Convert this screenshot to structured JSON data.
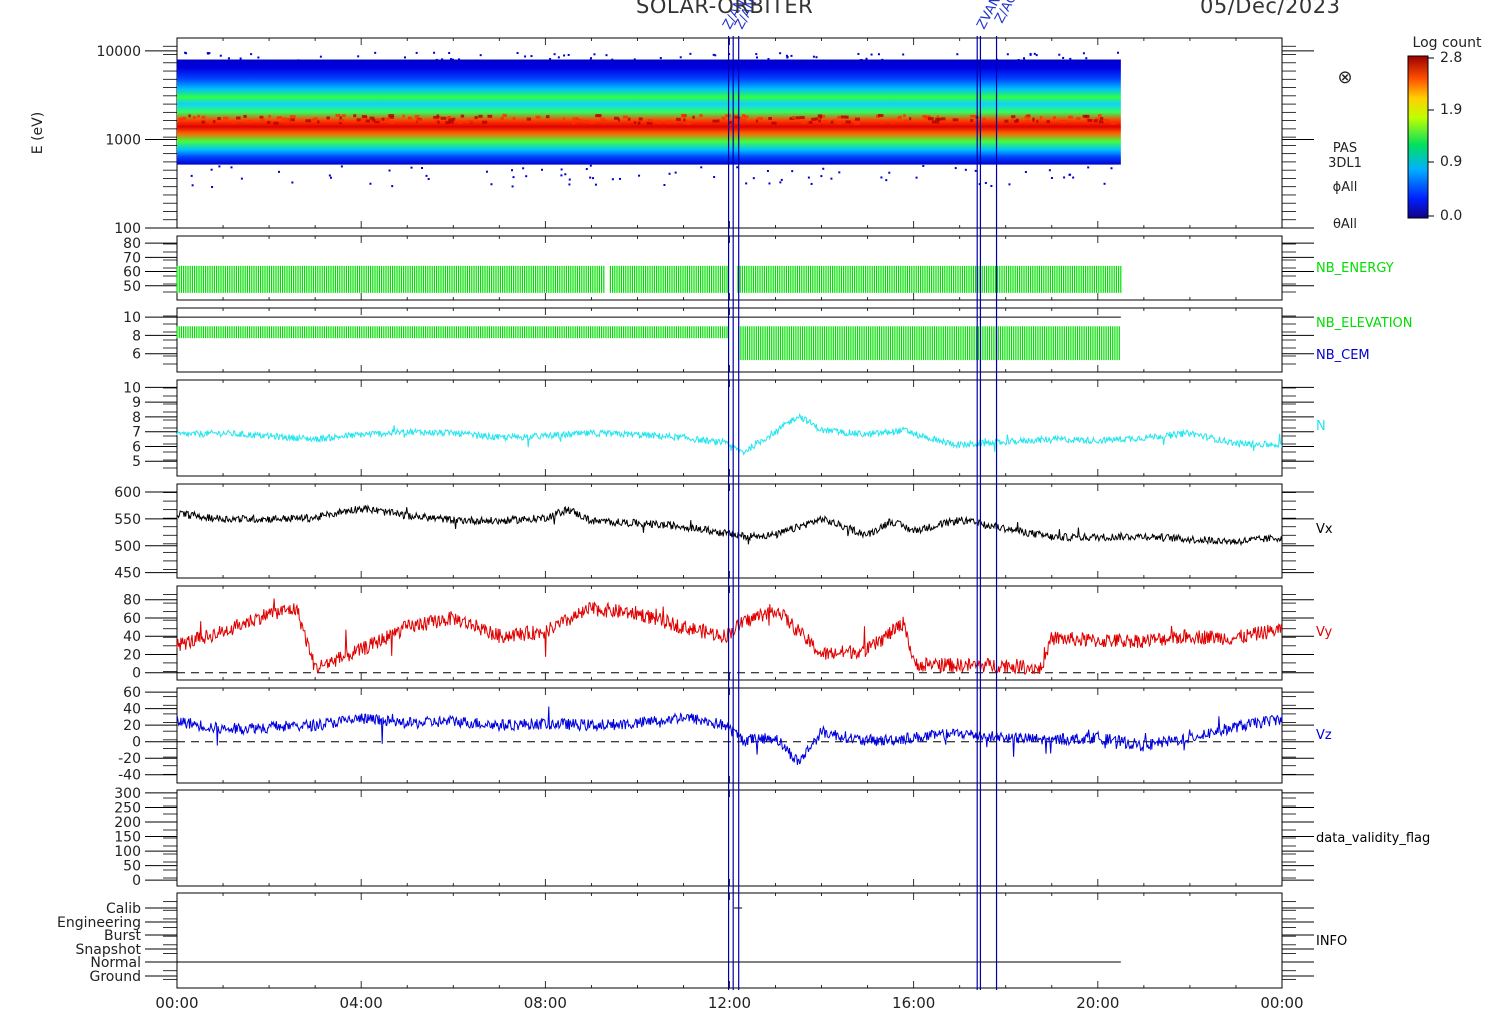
{
  "header": {
    "mission": "SOLAR-ORBITER",
    "date": "05/Dec/2023"
  },
  "colorbar": {
    "title": "Log count",
    "ticks": [
      "2.8",
      "1.9",
      "0.9",
      "0.0"
    ]
  },
  "time_axis": {
    "ticks": [
      "00:00",
      "04:00",
      "08:00",
      "12:00",
      "16:00",
      "20:00",
      "00:00"
    ],
    "range_hours": [
      0,
      24
    ]
  },
  "markers": {
    "hours": [
      11.98,
      12.08,
      12.2,
      17.38,
      17.45,
      17.8
    ],
    "labels": [
      "Z/AN",
      "Z/AN",
      "ZVAN",
      "Z/AO"
    ]
  },
  "chart_data": [
    {
      "type": "heatmap",
      "ylabel": "E (eV)",
      "y_scale": "log",
      "ylim": [
        100,
        14000
      ],
      "y_ticks": [
        "10000",
        "1000",
        "100"
      ],
      "right_labels": [
        "PAS",
        "3DL1",
        "ϕAll",
        "θAll"
      ],
      "data_extent_hours": [
        0,
        20.5
      ],
      "peak_energy_eV": 1500,
      "colormap": "rainbow (blue to red)",
      "extra_symbol": "⊗"
    },
    {
      "type": "bar",
      "label": "NB_ENERGY",
      "label_color": "#00dd00",
      "y_ticks": [
        "80",
        "70",
        "60",
        "50"
      ],
      "ylim": [
        40,
        85
      ],
      "level": 64,
      "base": 45,
      "data_extent_hours": [
        0,
        20.5
      ],
      "gaps_hours": [
        9.35,
        11.95,
        12.15
      ]
    },
    {
      "type": "bar",
      "labels": [
        "NB_ELEVATION",
        "NB_CEM"
      ],
      "label_colors": [
        "#00dd00",
        "#0000cc"
      ],
      "y_ticks": [
        "10",
        "8",
        "6"
      ],
      "ylim": [
        4,
        11
      ],
      "segments": [
        {
          "from": 0,
          "to": 11.95,
          "low": 7.7,
          "high": 9.0
        },
        {
          "from": 12.2,
          "to": 20.5,
          "low": 5.3,
          "high": 9.0
        }
      ],
      "top_line_value": 10.0
    },
    {
      "type": "line",
      "label": "N",
      "color": "#22e5ee",
      "y_ticks": [
        "10",
        "9",
        "8",
        "7",
        "6",
        "5"
      ],
      "ylim": [
        4,
        10.5
      ],
      "x": [
        0,
        1,
        2,
        3,
        4,
        5,
        6,
        7,
        8,
        9,
        10,
        11,
        11.9,
        12.3,
        13,
        13.5,
        14,
        15,
        15.8,
        16.5,
        17,
        18,
        19,
        20,
        21,
        22,
        23,
        24
      ],
      "values": [
        6.8,
        6.9,
        6.7,
        6.5,
        6.8,
        7.0,
        6.9,
        6.6,
        6.7,
        6.9,
        6.8,
        6.6,
        6.2,
        5.6,
        7.0,
        8.1,
        7.1,
        6.8,
        7.1,
        6.4,
        6.1,
        6.3,
        6.5,
        6.4,
        6.6,
        6.9,
        6.2,
        6.1
      ]
    },
    {
      "type": "line",
      "label": "Vx",
      "color": "#000000",
      "y_ticks": [
        "600",
        "550",
        "500",
        "450"
      ],
      "ylim": [
        440,
        615
      ],
      "x": [
        0,
        1,
        2,
        3,
        3.5,
        4,
        5,
        6,
        7,
        8,
        8.5,
        9,
        10,
        11,
        12,
        12.3,
        13,
        14,
        15,
        15.5,
        16,
        17,
        18,
        19,
        20,
        21,
        22,
        23,
        24
      ],
      "values": [
        560,
        550,
        550,
        552,
        562,
        570,
        556,
        548,
        546,
        552,
        568,
        546,
        542,
        536,
        522,
        518,
        520,
        550,
        520,
        546,
        528,
        548,
        532,
        516,
        516,
        518,
        512,
        508,
        515
      ]
    },
    {
      "type": "line",
      "label": "Vy",
      "color": "#e00000",
      "y_ticks": [
        "80",
        "60",
        "40",
        "20",
        "0"
      ],
      "ylim": [
        -8,
        95
      ],
      "zero_line": true,
      "x": [
        0,
        1,
        2,
        2.6,
        3,
        3.5,
        4,
        5,
        6,
        7,
        8,
        9,
        10,
        11,
        11.9,
        12.3,
        13,
        13.5,
        14,
        15,
        15.8,
        16,
        17,
        18,
        18.8,
        19,
        20,
        21,
        22,
        23,
        24
      ],
      "values": [
        30,
        45,
        65,
        70,
        5,
        15,
        25,
        50,
        60,
        40,
        45,
        70,
        65,
        50,
        40,
        55,
        70,
        45,
        20,
        25,
        55,
        10,
        8,
        8,
        5,
        38,
        35,
        35,
        40,
        38,
        48
      ]
    },
    {
      "type": "line",
      "label": "Vz",
      "color": "#0000dd",
      "y_ticks": [
        "60",
        "40",
        "20",
        "0",
        "-20",
        "-40"
      ],
      "ylim": [
        -50,
        65
      ],
      "zero_line": true,
      "x": [
        0,
        1,
        2,
        3,
        4,
        5,
        6,
        7,
        8,
        9,
        10,
        11,
        11.9,
        12.3,
        13,
        13.5,
        14,
        15,
        16,
        17,
        18,
        19,
        20,
        21,
        22,
        23,
        24
      ],
      "values": [
        25,
        15,
        18,
        20,
        28,
        22,
        25,
        20,
        22,
        20,
        22,
        30,
        20,
        2,
        5,
        -25,
        12,
        0,
        5,
        10,
        5,
        2,
        5,
        -5,
        5,
        18,
        28
      ]
    },
    {
      "type": "line",
      "label": "data_validity_flag",
      "y_ticks": [
        "300",
        "250",
        "200",
        "150",
        "100",
        "50",
        "0"
      ],
      "ylim": [
        -20,
        310
      ]
    },
    {
      "type": "line",
      "label": "INFO",
      "y_ticks": [
        "Calib",
        "Engineering",
        "Burst",
        "Snapshot",
        "Normal",
        "Ground"
      ],
      "normal_extent_hours": [
        0,
        20.5
      ],
      "calib_blip_hour": 12.1
    }
  ]
}
